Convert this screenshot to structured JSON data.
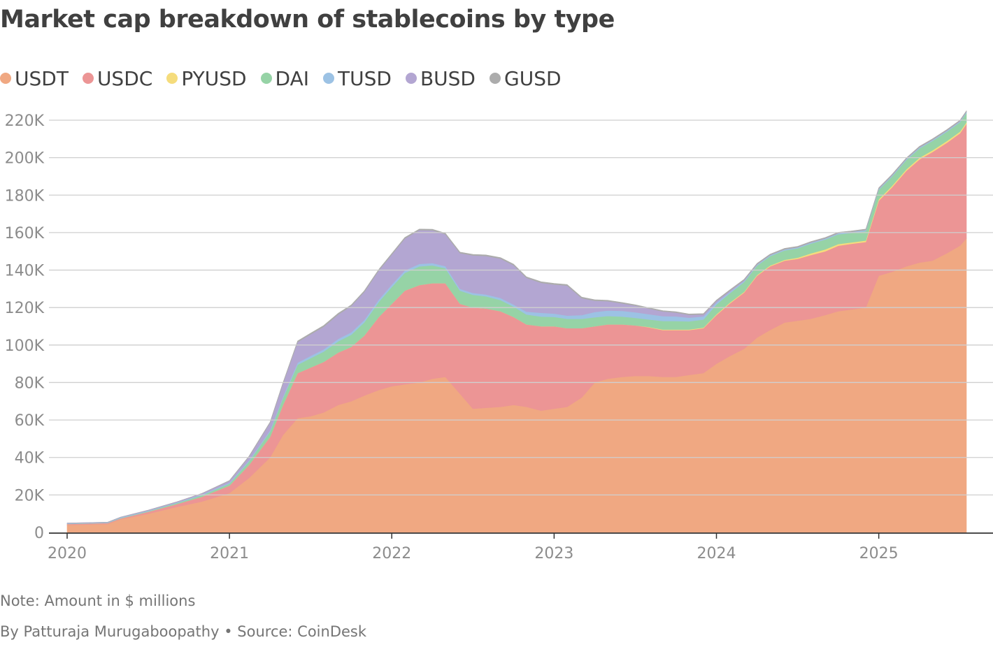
{
  "title": "Market cap breakdown of stablecoins by type",
  "note": "Note: Amount in $ millions",
  "byline": "By Patturaja Murugaboopathy",
  "source": "• Source: CoinDesk",
  "colors": {
    "USDT": "#f0a882",
    "USDC": "#ec9595",
    "PYUSD": "#f5dc7c",
    "DAI": "#96d3a6",
    "TUSD": "#9cc2e4",
    "BUSD": "#b3a6d2",
    "GUSD": "#acacac",
    "grid": "#cfcfcf",
    "axis": "#333333"
  },
  "chart_data": {
    "type": "area",
    "stacked": true,
    "ylim": [
      0,
      220000
    ],
    "yticks": [
      0,
      20000,
      40000,
      60000,
      80000,
      100000,
      120000,
      140000,
      160000,
      180000,
      200000,
      220000
    ],
    "ytick_labels": [
      "0",
      "20K",
      "40K",
      "60K",
      "80K",
      "100K",
      "120K",
      "140K",
      "160K",
      "180K",
      "200K",
      "220K"
    ],
    "xticks": [
      2020,
      2021,
      2022,
      2023,
      2024,
      2025
    ],
    "xtick_labels": [
      "2020",
      "2021",
      "2022",
      "2023",
      "2024",
      "2025"
    ],
    "grid": true,
    "legend_position": "top-left",
    "x": [
      2020.0,
      2020.25,
      2020.33,
      2020.5,
      2020.67,
      2020.83,
      2021.0,
      2021.12,
      2021.25,
      2021.33,
      2021.42,
      2021.5,
      2021.58,
      2021.67,
      2021.75,
      2021.83,
      2021.92,
      2022.0,
      2022.08,
      2022.17,
      2022.25,
      2022.33,
      2022.42,
      2022.5,
      2022.58,
      2022.67,
      2022.75,
      2022.83,
      2022.92,
      2023.0,
      2023.08,
      2023.17,
      2023.25,
      2023.33,
      2023.42,
      2023.5,
      2023.58,
      2023.67,
      2023.75,
      2023.83,
      2023.92,
      2024.0,
      2024.08,
      2024.17,
      2024.25,
      2024.33,
      2024.42,
      2024.5,
      2024.58,
      2024.67,
      2024.75,
      2024.83,
      2024.92,
      2025.0,
      2025.08,
      2025.17,
      2025.25,
      2025.33,
      2025.42,
      2025.5,
      2025.54
    ],
    "series": [
      {
        "name": "USDT",
        "values": [
          4000,
          4500,
          7000,
          10000,
          13500,
          16500,
          21000,
          29000,
          40000,
          52000,
          61000,
          62000,
          64000,
          68000,
          70000,
          73000,
          76000,
          78000,
          79000,
          80000,
          82000,
          83000,
          74000,
          66000,
          66500,
          67000,
          68000,
          67000,
          65000,
          66000,
          67000,
          72000,
          80000,
          82000,
          83000,
          83500,
          83500,
          83000,
          83000,
          84000,
          85000,
          90000,
          94000,
          98000,
          104000,
          108000,
          112000,
          113000,
          114000,
          116000,
          118000,
          119000,
          120000,
          137000,
          139000,
          142000,
          144000,
          145000,
          149000,
          153000,
          157000
        ]
      },
      {
        "name": "USDC",
        "values": [
          500,
          500,
          500,
          1000,
          1500,
          2500,
          4000,
          7000,
          11000,
          16000,
          24000,
          26000,
          27000,
          28000,
          29000,
          32000,
          39000,
          44000,
          50000,
          52000,
          51000,
          50000,
          48000,
          54000,
          53000,
          51000,
          47000,
          44000,
          45000,
          44000,
          42000,
          37000,
          30000,
          29000,
          28000,
          27000,
          26000,
          25000,
          25000,
          24000,
          24000,
          26000,
          28000,
          30000,
          33000,
          34000,
          33000,
          33000,
          34000,
          34000,
          35000,
          35000,
          35000,
          40000,
          45000,
          51000,
          55000,
          58000,
          59000,
          60000,
          61000
        ]
      },
      {
        "name": "PYUSD",
        "values": [
          0,
          0,
          0,
          0,
          0,
          0,
          0,
          0,
          0,
          0,
          0,
          0,
          0,
          0,
          0,
          0,
          0,
          0,
          0,
          0,
          0,
          0,
          0,
          0,
          0,
          0,
          0,
          0,
          0,
          0,
          0,
          0,
          0,
          0,
          0,
          0,
          200,
          300,
          300,
          300,
          300,
          400,
          500,
          400,
          400,
          400,
          500,
          600,
          900,
          1000,
          900,
          800,
          800,
          800,
          800,
          800,
          900,
          900,
          900,
          900,
          900
        ]
      },
      {
        "name": "DAI",
        "values": [
          100,
          100,
          200,
          300,
          500,
          800,
          1000,
          1800,
          2800,
          3700,
          4500,
          5000,
          5500,
          6000,
          6500,
          7000,
          8000,
          9000,
          9500,
          10000,
          9500,
          8000,
          7000,
          6800,
          6500,
          6000,
          5500,
          5300,
          5200,
          5000,
          5000,
          5000,
          4800,
          4500,
          4200,
          4000,
          4000,
          4500,
          4500,
          4300,
          4300,
          5200,
          5000,
          5200,
          5000,
          5000,
          5000,
          5000,
          5200,
          5300,
          5200,
          5000,
          5000,
          5000,
          5000,
          5000,
          5000,
          5000,
          5000,
          5000,
          5000
        ]
      },
      {
        "name": "TUSD",
        "values": [
          200,
          200,
          300,
          300,
          300,
          400,
          500,
          600,
          700,
          800,
          1100,
          1200,
          1200,
          1300,
          1300,
          1300,
          1300,
          1300,
          1300,
          1300,
          1200,
          1100,
          1000,
          1000,
          1000,
          1100,
          1100,
          1500,
          2000,
          1800,
          1700,
          2000,
          2800,
          2900,
          3000,
          3000,
          2800,
          2600,
          2500,
          2000,
          1700,
          1100,
          700,
          600,
          500,
          500,
          500,
          500,
          500,
          500,
          500,
          500,
          500,
          500,
          500,
          500,
          500,
          500,
          500,
          500,
          500
        ]
      },
      {
        "name": "BUSD",
        "values": [
          200,
          200,
          200,
          300,
          400,
          600,
          1000,
          2000,
          4000,
          7000,
          11000,
          11500,
          12000,
          13000,
          14000,
          15000,
          15500,
          16000,
          17000,
          18000,
          17500,
          17000,
          19000,
          20000,
          20500,
          21000,
          21000,
          18000,
          16000,
          15500,
          16000,
          9000,
          6000,
          5000,
          4000,
          3500,
          3000,
          2500,
          2000,
          1500,
          1000,
          800,
          600,
          400,
          200,
          100,
          100,
          100,
          100,
          100,
          100,
          100,
          100,
          100,
          100,
          100,
          100,
          100,
          100,
          100,
          100
        ]
      },
      {
        "name": "GUSD",
        "values": [
          0,
          0,
          0,
          0,
          0,
          0,
          200,
          300,
          400,
          500,
          600,
          700,
          700,
          700,
          600,
          600,
          600,
          600,
          600,
          600,
          600,
          600,
          600,
          600,
          600,
          600,
          600,
          600,
          600,
          600,
          600,
          600,
          600,
          500,
          500,
          500,
          500,
          500,
          500,
          500,
          500,
          500,
          500,
          500,
          500,
          500,
          500,
          500,
          500,
          500,
          500,
          500,
          500,
          500,
          500,
          500,
          500,
          500,
          500,
          500,
          500
        ]
      }
    ]
  }
}
